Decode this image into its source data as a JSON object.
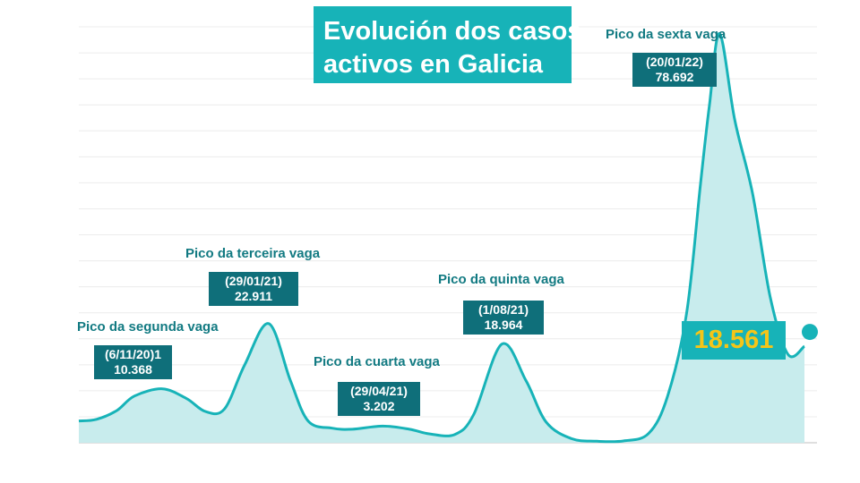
{
  "title_lines": [
    "Evolución dos casos",
    "activos en Galicia"
  ],
  "current_value_label": "18.561",
  "colors": {
    "accent": "#17b3b8",
    "area_fill": "#c8eced",
    "label_text": "#127a82",
    "box_dark": "#0f6f7a",
    "highlight": "#f5c518"
  },
  "peaks": [
    {
      "label": "Pico da segunda vaga",
      "date": "(6/11/20)1",
      "value": "10.368"
    },
    {
      "label": "Pico da terceira vaga",
      "date": "(29/01/21)",
      "value": "22.911"
    },
    {
      "label": "Pico da cuarta vaga",
      "date": "(29/04/21)",
      "value": "3.202"
    },
    {
      "label": "Pico da quinta vaga",
      "date": "(1/08/21)",
      "value": "18.964"
    },
    {
      "label": "Pico da sexta vaga",
      "date": "(20/01/22)",
      "value": "78.692"
    }
  ],
  "chart_data": {
    "type": "area",
    "title": "Evolución dos casos activos en Galicia",
    "xlabel": "",
    "ylabel": "",
    "ylim": [
      0,
      80000
    ],
    "grid": true,
    "x": [
      "2020-09-01",
      "2020-09-15",
      "2020-10-01",
      "2020-10-15",
      "2020-11-06",
      "2020-11-25",
      "2020-12-10",
      "2020-12-25",
      "2021-01-10",
      "2021-01-29",
      "2021-02-15",
      "2021-03-01",
      "2021-03-20",
      "2021-04-05",
      "2021-04-29",
      "2021-05-20",
      "2021-06-05",
      "2021-06-25",
      "2021-07-10",
      "2021-08-01",
      "2021-08-20",
      "2021-09-05",
      "2021-09-25",
      "2021-10-15",
      "2021-11-05",
      "2021-11-25",
      "2021-12-10",
      "2021-12-25",
      "2022-01-05",
      "2022-01-12",
      "2022-01-20",
      "2022-02-01",
      "2022-02-15",
      "2022-03-01",
      "2022-03-15",
      "2022-03-28"
    ],
    "values": [
      4200,
      4500,
      6200,
      9000,
      10368,
      8500,
      6000,
      6500,
      15000,
      22911,
      12000,
      4200,
      2800,
      2600,
      3202,
      2600,
      1700,
      1600,
      5500,
      18964,
      12000,
      4000,
      800,
      300,
      350,
      1800,
      9000,
      25000,
      50000,
      65000,
      78692,
      62000,
      48000,
      28000,
      17000,
      18561
    ]
  }
}
